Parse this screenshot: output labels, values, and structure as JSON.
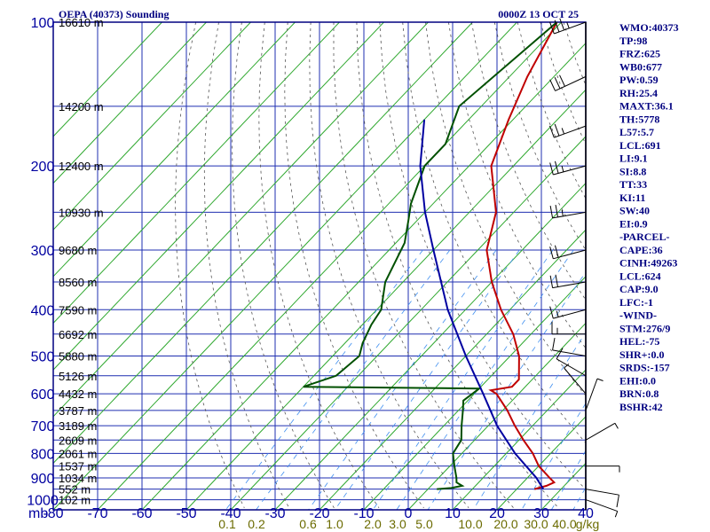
{
  "chart_data": {
    "type": "line",
    "title": "OEPA (40373) Sounding",
    "valid_time": "0000Z 13 OCT 25",
    "y_axis_unit": "mb",
    "pressure_levels": [
      100,
      200,
      300,
      400,
      500,
      600,
      700,
      800,
      900,
      1000
    ],
    "temperature_ticks": [
      -80,
      -70,
      -60,
      -50,
      -40,
      -30,
      -20,
      -10,
      0,
      10,
      20,
      30,
      40
    ],
    "temperature_tick_labels": [
      "-80",
      "-70",
      "-60",
      "-50",
      "-40",
      "-30",
      "-20",
      "-10",
      "0",
      "10",
      "20",
      "30",
      "40"
    ],
    "mixing_ratio_labels": [
      "0.1",
      "0.2",
      "0.6",
      "1.0",
      "2.0",
      "3.0",
      "5.0",
      "10.0",
      "20.0",
      "30.0",
      "40.0",
      "g/kg"
    ],
    "height_labels": [
      {
        "p": 100,
        "label": "16610 m"
      },
      {
        "p": 150,
        "label": "14200 m"
      },
      {
        "p": 200,
        "label": "12400 m"
      },
      {
        "p": 250,
        "label": "10930 m"
      },
      {
        "p": 300,
        "label": "9680 m"
      },
      {
        "p": 350,
        "label": "8560 m"
      },
      {
        "p": 400,
        "label": "7590 m"
      },
      {
        "p": 450,
        "label": "6692 m"
      },
      {
        "p": 500,
        "label": "5880 m"
      },
      {
        "p": 550,
        "label": "5126 m"
      },
      {
        "p": 600,
        "label": "4432 m"
      },
      {
        "p": 650,
        "label": "3787 m"
      },
      {
        "p": 700,
        "label": "3189 m"
      },
      {
        "p": 750,
        "label": "2609 m"
      },
      {
        "p": 800,
        "label": "2061 m"
      },
      {
        "p": 850,
        "label": "1537 m"
      },
      {
        "p": 900,
        "label": "1034 m"
      },
      {
        "p": 950,
        "label": "552 m"
      },
      {
        "p": 1000,
        "label": "102 m"
      }
    ],
    "series": [
      {
        "name": "",
        "color": "#c00000",
        "points": [
          {
            "p": 100,
            "t": -71
          },
          {
            "p": 130,
            "t": -66
          },
          {
            "p": 160,
            "t": -61
          },
          {
            "p": 200,
            "t": -55
          },
          {
            "p": 250,
            "t": -44
          },
          {
            "p": 300,
            "t": -38
          },
          {
            "p": 350,
            "t": -30
          },
          {
            "p": 400,
            "t": -22
          },
          {
            "p": 450,
            "t": -14
          },
          {
            "p": 500,
            "t": -8
          },
          {
            "p": 560,
            "t": -3
          },
          {
            "p": 580,
            "t": -3
          },
          {
            "p": 590,
            "t": -7
          },
          {
            "p": 600,
            "t": -5
          },
          {
            "p": 650,
            "t": 1
          },
          {
            "p": 700,
            "t": 6
          },
          {
            "p": 750,
            "t": 11
          },
          {
            "p": 800,
            "t": 16
          },
          {
            "p": 850,
            "t": 20
          },
          {
            "p": 900,
            "t": 25
          },
          {
            "p": 920,
            "t": 27
          },
          {
            "p": 935,
            "t": 26
          },
          {
            "p": 950,
            "t": 24
          }
        ]
      },
      {
        "name": "",
        "color": "#005000",
        "points": [
          {
            "p": 100,
            "t": -71
          },
          {
            "p": 150,
            "t": -75
          },
          {
            "p": 180,
            "t": -70
          },
          {
            "p": 200,
            "t": -70
          },
          {
            "p": 240,
            "t": -65
          },
          {
            "p": 260,
            "t": -62
          },
          {
            "p": 290,
            "t": -58
          },
          {
            "p": 350,
            "t": -54
          },
          {
            "p": 400,
            "t": -49
          },
          {
            "p": 430,
            "t": -48
          },
          {
            "p": 470,
            "t": -46
          },
          {
            "p": 500,
            "t": -44
          },
          {
            "p": 550,
            "t": -45
          },
          {
            "p": 580,
            "t": -50
          },
          {
            "p": 585,
            "t": -10
          },
          {
            "p": 620,
            "t": -11
          },
          {
            "p": 650,
            "t": -9
          },
          {
            "p": 700,
            "t": -6
          },
          {
            "p": 750,
            "t": -3
          },
          {
            "p": 800,
            "t": -2
          },
          {
            "p": 850,
            "t": 1
          },
          {
            "p": 900,
            "t": 4
          },
          {
            "p": 920,
            "t": 5
          },
          {
            "p": 935,
            "t": 7
          },
          {
            "p": 945,
            "t": 5
          },
          {
            "p": 950,
            "t": 2
          }
        ]
      },
      {
        "name": "",
        "color": "#0000a0",
        "points": [
          {
            "p": 160,
            "t": -80
          },
          {
            "p": 200,
            "t": -71
          },
          {
            "p": 250,
            "t": -60
          },
          {
            "p": 300,
            "t": -50
          },
          {
            "p": 400,
            "t": -34
          },
          {
            "p": 500,
            "t": -20
          },
          {
            "p": 600,
            "t": -8
          },
          {
            "p": 700,
            "t": 2
          },
          {
            "p": 800,
            "t": 12
          },
          {
            "p": 900,
            "t": 22
          },
          {
            "p": 950,
            "t": 26
          }
        ]
      }
    ],
    "winds": [
      {
        "p": 100,
        "dir": 250,
        "spd": 35
      },
      {
        "p": 130,
        "dir": 245,
        "spd": 30
      },
      {
        "p": 165,
        "dir": 250,
        "spd": 25
      },
      {
        "p": 200,
        "dir": 255,
        "spd": 25
      },
      {
        "p": 250,
        "dir": 260,
        "spd": 25
      },
      {
        "p": 300,
        "dir": 255,
        "spd": 20
      },
      {
        "p": 350,
        "dir": 260,
        "spd": 20
      },
      {
        "p": 400,
        "dir": 255,
        "spd": 15
      },
      {
        "p": 450,
        "dir": 270,
        "spd": 15
      },
      {
        "p": 500,
        "dir": 280,
        "spd": 10
      },
      {
        "p": 550,
        "dir": 300,
        "spd": 10
      },
      {
        "p": 600,
        "dir": 320,
        "spd": 5
      },
      {
        "p": 650,
        "dir": 20,
        "spd": 5
      },
      {
        "p": 750,
        "dir": 60,
        "spd": 5
      },
      {
        "p": 850,
        "dir": 90,
        "spd": 5
      },
      {
        "p": 950,
        "dir": 100,
        "spd": 10
      },
      {
        "p": 1000,
        "dir": 110,
        "spd": 5
      }
    ],
    "grid": true
  },
  "indices": [
    "WMO:40373",
    "TP:98",
    "FRZ:625",
    "WB0:677",
    "PW:0.59",
    "RH:25.4",
    "MAXT:36.1",
    "TH:5778",
    "L57:5.7",
    "LCL:691",
    "LI:9.1",
    "SI:8.8",
    "TT:33",
    "KI:11",
    "SW:40",
    "EI:0.9",
    "-PARCEL-",
    "CAPE:36",
    "CINH:49263",
    "LCL:624",
    "CAP:9.0",
    "LFC:-1",
    "-WIND-",
    "STM:276/9",
    "HEL:-75",
    "SHR+:0.0",
    "SRDS:-157",
    "EHI:0.0",
    "BRN:0.8",
    "BSHR:42"
  ],
  "colors": {
    "frame": "#000080",
    "isobar": "#1f2fb0",
    "isotherm": "#2fa82f",
    "dry_adiabat": "#555555",
    "mixing_ratio": "#3f8ff0"
  }
}
